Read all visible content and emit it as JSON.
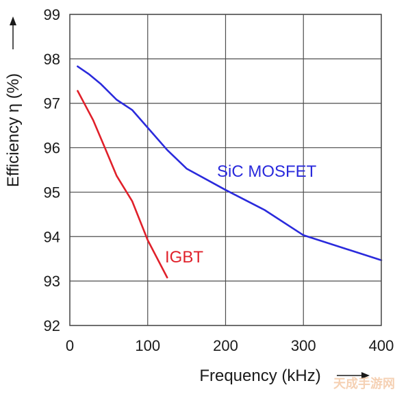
{
  "chart_data": {
    "type": "line",
    "xlabel": "Frequency (kHz)",
    "ylabel": "Efficiency η (%)",
    "xlim": [
      0,
      400
    ],
    "ylim": [
      92,
      99
    ],
    "x_ticks": [
      0,
      100,
      200,
      300,
      400
    ],
    "y_ticks": [
      92,
      93,
      94,
      95,
      96,
      97,
      98,
      99
    ],
    "grid": true,
    "colors": {
      "sic": "#2a2adc",
      "igbt": "#e0202a",
      "grid": "#4d4d4d"
    },
    "series": [
      {
        "name": "SiC MOSFET",
        "color": "#2a2adc",
        "x": [
          10,
          25,
          40,
          60,
          80,
          100,
          125,
          150,
          200,
          250,
          300,
          400
        ],
        "y": [
          97.83,
          97.65,
          97.43,
          97.08,
          96.85,
          96.45,
          95.95,
          95.53,
          95.05,
          94.6,
          94.03,
          93.47
        ]
      },
      {
        "name": "IGBT",
        "color": "#e0202a",
        "x": [
          10,
          30,
          45,
          60,
          80,
          100,
          125
        ],
        "y": [
          97.28,
          96.62,
          96.0,
          95.37,
          94.8,
          93.92,
          93.08
        ]
      }
    ]
  },
  "watermark": "天成手游网"
}
